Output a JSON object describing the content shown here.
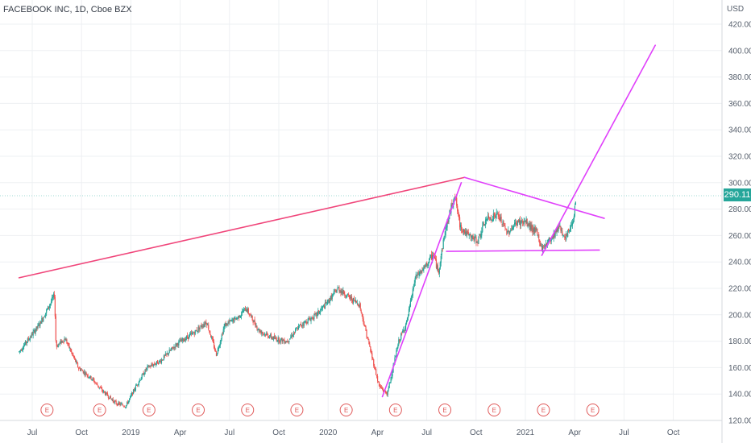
{
  "header": {
    "symbol_title": "FACEBOOK INC, 1D, Cboe BZX",
    "currency": "USD",
    "last_price": "290.11"
  },
  "colors": {
    "up": "#26a69a",
    "down": "#ef5350",
    "pattern_lines": "#e040fb",
    "trend_line": "#f0457a",
    "earnings_marker": "#e05a5a",
    "price_line": "#9ed8d3"
  },
  "earnings_marker_label": "E",
  "chart_data": {
    "type": "candlestick",
    "title": "FACEBOOK INC, 1D, Cboe BZX",
    "ylabel": "USD",
    "ylim": [
      118,
      430
    ],
    "y_ticks": [
      "420.00",
      "400.00",
      "380.00",
      "360.00",
      "340.00",
      "320.00",
      "300.00",
      "280.00",
      "260.00",
      "240.00",
      "220.00",
      "200.00",
      "180.00",
      "160.00",
      "140.00",
      "120.00"
    ],
    "x_ticks": [
      "Jul",
      "Oct",
      "2019",
      "Apr",
      "Jul",
      "Oct",
      "2020",
      "Apr",
      "Jul",
      "Oct",
      "2021",
      "Apr",
      "Jul",
      "Oct"
    ],
    "x_tick_months": [
      0,
      3,
      6,
      9,
      12,
      15,
      18,
      21,
      24,
      27,
      30,
      33,
      36,
      39
    ],
    "last_price": 290.11,
    "price_path": [
      [
        -0.8,
        172
      ],
      [
        0.4,
        192
      ],
      [
        1.0,
        206
      ],
      [
        1.35,
        215
      ],
      [
        1.45,
        176
      ],
      [
        2.0,
        182
      ],
      [
        2.8,
        160
      ],
      [
        3.6,
        152
      ],
      [
        4.3,
        142
      ],
      [
        5.1,
        133
      ],
      [
        5.7,
        131
      ],
      [
        6.4,
        148
      ],
      [
        7.0,
        160
      ],
      [
        7.8,
        165
      ],
      [
        8.8,
        178
      ],
      [
        9.8,
        186
      ],
      [
        10.6,
        195
      ],
      [
        11.2,
        170
      ],
      [
        11.7,
        192
      ],
      [
        12.5,
        198
      ],
      [
        13.0,
        205
      ],
      [
        13.8,
        188
      ],
      [
        14.7,
        182
      ],
      [
        15.5,
        180
      ],
      [
        16.3,
        192
      ],
      [
        17.3,
        200
      ],
      [
        18.0,
        210
      ],
      [
        18.6,
        220
      ],
      [
        19.4,
        212
      ],
      [
        19.9,
        208
      ],
      [
        20.4,
        182
      ],
      [
        21.1,
        146
      ],
      [
        21.6,
        140
      ],
      [
        22.3,
        180
      ],
      [
        22.8,
        195
      ],
      [
        23.3,
        228
      ],
      [
        23.9,
        236
      ],
      [
        24.4,
        246
      ],
      [
        24.7,
        232
      ],
      [
        25.1,
        262
      ],
      [
        25.7,
        292
      ],
      [
        26.0,
        268
      ],
      [
        26.5,
        260
      ],
      [
        27.1,
        256
      ],
      [
        27.6,
        272
      ],
      [
        28.3,
        276
      ],
      [
        28.9,
        262
      ],
      [
        29.5,
        270
      ],
      [
        30.0,
        270
      ],
      [
        30.7,
        262
      ],
      [
        31.0,
        250
      ],
      [
        31.7,
        260
      ],
      [
        32.1,
        268
      ],
      [
        32.4,
        256
      ],
      [
        32.9,
        272
      ],
      [
        33.1,
        290
      ]
    ],
    "gap_after_month": 1.4,
    "drawings": [
      {
        "name": "long-trend-line",
        "points": [
          [
            -0.8,
            228
          ],
          [
            26.3,
            304
          ]
        ]
      },
      {
        "name": "rally-leg-line",
        "points": [
          [
            21.3,
            138
          ],
          [
            26.1,
            300
          ]
        ]
      },
      {
        "name": "triangle-upper-line",
        "points": [
          [
            26.3,
            304
          ],
          [
            34.8,
            273
          ]
        ]
      },
      {
        "name": "triangle-lower-line",
        "points": [
          [
            25.2,
            248
          ],
          [
            34.5,
            249
          ]
        ]
      },
      {
        "name": "breakout-projection-line",
        "points": [
          [
            31.0,
            245
          ],
          [
            37.9,
            404
          ]
        ]
      }
    ],
    "earnings_months": [
      0.9,
      4.1,
      7.1,
      10.1,
      13.1,
      16.1,
      19.1,
      22.1,
      25.1,
      28.1,
      31.1,
      34.1
    ],
    "grid": true,
    "legend": "none"
  }
}
